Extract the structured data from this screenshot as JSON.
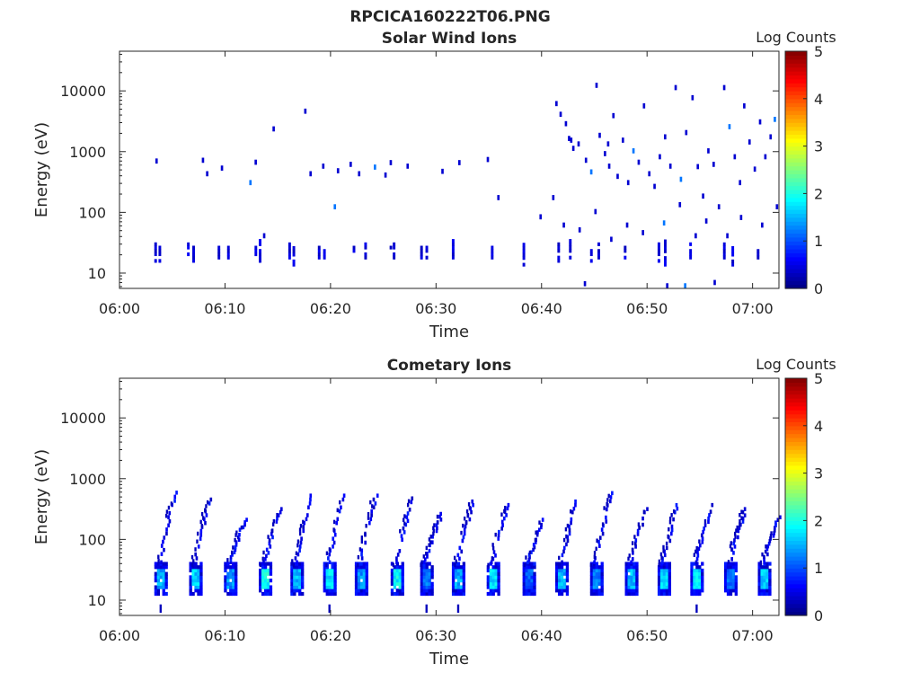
{
  "figure_title": "RPCICA160222T06.PNG",
  "colormap": [
    "#00007f",
    "#0000ff",
    "#007fff",
    "#00ffff",
    "#7fff7f",
    "#ffff00",
    "#ff7f00",
    "#ff0000",
    "#7f0000"
  ],
  "chart_data": [
    {
      "type": "heatmap",
      "title": "Solar Wind Ions",
      "xlabel": "Time",
      "ylabel": "Energy (eV)",
      "x_tick_labels": [
        "06:00",
        "06:10",
        "06:20",
        "06:30",
        "06:40",
        "06:50",
        "07:00"
      ],
      "x_tick_minutes": [
        0,
        10,
        20,
        30,
        40,
        50,
        60
      ],
      "xlim_minutes": [
        0,
        62.5
      ],
      "y_scale": "log",
      "ylim": [
        5.6,
        45000
      ],
      "y_tick_labels": [
        "10",
        "100",
        "1000",
        "10000"
      ],
      "y_tick_values": [
        10,
        100,
        1000,
        10000
      ],
      "colorbar": {
        "label": "Log Counts",
        "range": [
          0,
          5
        ],
        "tick_labels": [
          "0",
          "1",
          "2",
          "3",
          "4",
          "5"
        ]
      },
      "low_band_columns": [
        {
          "t": 3.3,
          "e": [
            15,
            30
          ],
          "v": 0.3
        },
        {
          "t": 3.7,
          "e": [
            15,
            30
          ],
          "v": 0.3
        },
        {
          "t": 6.4,
          "e": [
            17,
            30
          ],
          "v": 0.3
        },
        {
          "t": 6.9,
          "e": [
            15,
            26
          ],
          "v": 0.3
        },
        {
          "t": 9.3,
          "e": [
            17,
            26
          ],
          "v": 0.3
        },
        {
          "t": 10.2,
          "e": [
            17,
            30
          ],
          "v": 0.3
        },
        {
          "t": 12.8,
          "e": [
            17,
            26
          ],
          "v": 0.3
        },
        {
          "t": 13.2,
          "e": [
            15,
            34
          ],
          "v": 0.3
        },
        {
          "t": 16.0,
          "e": [
            17,
            30
          ],
          "v": 0.3
        },
        {
          "t": 16.4,
          "e": [
            13,
            26
          ],
          "v": 0.3
        },
        {
          "t": 18.8,
          "e": [
            17,
            30
          ],
          "v": 0.3
        },
        {
          "t": 19.3,
          "e": [
            17,
            30
          ],
          "v": 0.3
        },
        {
          "t": 22.1,
          "e": [
            17,
            26
          ],
          "v": 0.3
        },
        {
          "t": 23.2,
          "e": [
            17,
            30
          ],
          "v": 0.3
        },
        {
          "t": 25.6,
          "e": [
            17,
            26
          ],
          "v": 0.3
        },
        {
          "t": 25.9,
          "e": [
            17,
            30
          ],
          "v": 0.3
        },
        {
          "t": 28.5,
          "e": [
            17,
            30
          ],
          "v": 0.3
        },
        {
          "t": 29.0,
          "e": [
            17,
            26
          ],
          "v": 0.3
        },
        {
          "t": 31.5,
          "e": [
            17,
            34
          ],
          "v": 0.3
        },
        {
          "t": 35.2,
          "e": [
            17,
            26
          ],
          "v": 0.3
        },
        {
          "t": 38.2,
          "e": [
            13,
            34
          ],
          "v": 0.3
        },
        {
          "t": 41.5,
          "e": [
            15,
            30
          ],
          "v": 0.3
        },
        {
          "t": 42.6,
          "e": [
            17,
            34
          ],
          "v": 0.3
        },
        {
          "t": 44.6,
          "e": [
            15,
            30
          ],
          "v": 0.3
        },
        {
          "t": 45.3,
          "e": [
            17,
            30
          ],
          "v": 0.3
        },
        {
          "t": 47.8,
          "e": [
            17,
            30
          ],
          "v": 0.3
        },
        {
          "t": 51.0,
          "e": [
            15,
            30
          ],
          "v": 0.3
        },
        {
          "t": 51.6,
          "e": [
            13,
            34
          ],
          "v": 0.3
        },
        {
          "t": 54.0,
          "e": [
            15,
            30
          ],
          "v": 0.3
        },
        {
          "t": 57.2,
          "e": [
            17,
            30
          ],
          "v": 0.3
        },
        {
          "t": 58.0,
          "e": [
            13,
            26
          ],
          "v": 0.3
        },
        {
          "t": 60.4,
          "e": [
            17,
            26
          ],
          "v": 0.3
        }
      ],
      "points": [
        {
          "t": 3.4,
          "e": 680
        },
        {
          "t": 7.8,
          "e": 700
        },
        {
          "t": 8.2,
          "e": 420
        },
        {
          "t": 9.6,
          "e": 520
        },
        {
          "t": 12.3,
          "e": 300
        },
        {
          "t": 12.8,
          "e": 650
        },
        {
          "t": 14.5,
          "e": 2300
        },
        {
          "t": 17.5,
          "e": 4500
        },
        {
          "t": 18.0,
          "e": 420
        },
        {
          "t": 19.2,
          "e": 560
        },
        {
          "t": 20.6,
          "e": 470
        },
        {
          "t": 21.8,
          "e": 600
        },
        {
          "t": 22.6,
          "e": 420
        },
        {
          "t": 24.1,
          "e": 540
        },
        {
          "t": 25.1,
          "e": 400
        },
        {
          "t": 25.6,
          "e": 640
        },
        {
          "t": 27.2,
          "e": 560
        },
        {
          "t": 30.5,
          "e": 460
        },
        {
          "t": 32.1,
          "e": 640
        },
        {
          "t": 34.8,
          "e": 720
        },
        {
          "t": 35.8,
          "e": 170
        },
        {
          "t": 39.8,
          "e": 82
        },
        {
          "t": 20.3,
          "e": 120
        },
        {
          "t": 13.6,
          "e": 40
        },
        {
          "t": 41.3,
          "e": 6000
        },
        {
          "t": 41.7,
          "e": 4000
        },
        {
          "t": 42.2,
          "e": 2800
        },
        {
          "t": 42.5,
          "e": 1600
        },
        {
          "t": 42.9,
          "e": 1100
        },
        {
          "t": 43.4,
          "e": 1300
        },
        {
          "t": 44.1,
          "e": 700
        },
        {
          "t": 44.6,
          "e": 450
        },
        {
          "t": 45.1,
          "e": 12000
        },
        {
          "t": 45.4,
          "e": 1800
        },
        {
          "t": 45.9,
          "e": 900
        },
        {
          "t": 46.3,
          "e": 560
        },
        {
          "t": 46.7,
          "e": 3800
        },
        {
          "t": 47.1,
          "e": 380
        },
        {
          "t": 47.6,
          "e": 1500
        },
        {
          "t": 48.1,
          "e": 300
        },
        {
          "t": 48.6,
          "e": 1000
        },
        {
          "t": 49.1,
          "e": 650
        },
        {
          "t": 49.6,
          "e": 5500
        },
        {
          "t": 50.1,
          "e": 420
        },
        {
          "t": 50.6,
          "e": 260
        },
        {
          "t": 51.1,
          "e": 800
        },
        {
          "t": 51.6,
          "e": 1700
        },
        {
          "t": 52.1,
          "e": 560
        },
        {
          "t": 52.6,
          "e": 11000
        },
        {
          "t": 53.1,
          "e": 340
        },
        {
          "t": 53.6,
          "e": 2000
        },
        {
          "t": 54.2,
          "e": 7500
        },
        {
          "t": 54.7,
          "e": 550
        },
        {
          "t": 55.2,
          "e": 180
        },
        {
          "t": 55.7,
          "e": 1000
        },
        {
          "t": 56.2,
          "e": 600
        },
        {
          "t": 56.7,
          "e": 120
        },
        {
          "t": 57.2,
          "e": 11000
        },
        {
          "t": 57.7,
          "e": 2500
        },
        {
          "t": 58.2,
          "e": 800
        },
        {
          "t": 58.7,
          "e": 300
        },
        {
          "t": 59.1,
          "e": 5500
        },
        {
          "t": 59.6,
          "e": 1400
        },
        {
          "t": 60.1,
          "e": 500
        },
        {
          "t": 60.6,
          "e": 3000
        },
        {
          "t": 61.1,
          "e": 800
        },
        {
          "t": 61.6,
          "e": 1700
        },
        {
          "t": 62.0,
          "e": 3300
        },
        {
          "t": 62.2,
          "e": 120
        },
        {
          "t": 41.0,
          "e": 170
        },
        {
          "t": 42.0,
          "e": 60
        },
        {
          "t": 43.5,
          "e": 50
        },
        {
          "t": 45.0,
          "e": 100
        },
        {
          "t": 46.5,
          "e": 35
        },
        {
          "t": 48.0,
          "e": 60
        },
        {
          "t": 49.5,
          "e": 45
        },
        {
          "t": 51.5,
          "e": 65
        },
        {
          "t": 53.0,
          "e": 130
        },
        {
          "t": 54.5,
          "e": 40
        },
        {
          "t": 55.5,
          "e": 70
        },
        {
          "t": 57.5,
          "e": 40
        },
        {
          "t": 58.8,
          "e": 80
        },
        {
          "t": 60.8,
          "e": 60
        },
        {
          "t": 44.0,
          "e": 6.5
        },
        {
          "t": 51.8,
          "e": 6.0
        },
        {
          "t": 53.5,
          "e": 6.0
        },
        {
          "t": 56.3,
          "e": 6.8
        },
        {
          "t": 42.7,
          "e": 1500
        },
        {
          "t": 46.2,
          "e": 1300
        }
      ]
    },
    {
      "type": "heatmap",
      "title": "Cometary Ions",
      "xlabel": "Time",
      "ylabel": "Energy (eV)",
      "x_tick_labels": [
        "06:00",
        "06:10",
        "06:20",
        "06:30",
        "06:40",
        "06:50",
        "07:00"
      ],
      "x_tick_minutes": [
        0,
        10,
        20,
        30,
        40,
        50,
        60
      ],
      "xlim_minutes": [
        0,
        62.5
      ],
      "y_scale": "log",
      "ylim": [
        5.6,
        45000
      ],
      "y_tick_labels": [
        "10",
        "100",
        "1000",
        "10000"
      ],
      "y_tick_values": [
        10,
        100,
        1000,
        10000
      ],
      "colorbar": {
        "label": "Log Counts",
        "range": [
          0,
          5
        ],
        "tick_labels": [
          "0",
          "1",
          "2",
          "3",
          "4",
          "5"
        ]
      },
      "bursts": [
        {
          "t": 3.3,
          "core": 1.2,
          "top": 560
        },
        {
          "t": 6.6,
          "core": 1.4,
          "top": 500
        },
        {
          "t": 9.9,
          "core": 1.1,
          "top": 200
        },
        {
          "t": 13.2,
          "core": 1.7,
          "top": 300
        },
        {
          "t": 16.2,
          "core": 1.3,
          "top": 500
        },
        {
          "t": 19.3,
          "core": 1.5,
          "top": 500
        },
        {
          "t": 22.3,
          "core": 1.1,
          "top": 500
        },
        {
          "t": 25.7,
          "core": 1.6,
          "top": 450
        },
        {
          "t": 28.5,
          "core": 0.9,
          "top": 250
        },
        {
          "t": 31.5,
          "core": 1.2,
          "top": 400
        },
        {
          "t": 34.8,
          "core": 1.5,
          "top": 350
        },
        {
          "t": 38.2,
          "core": 0.8,
          "top": 200
        },
        {
          "t": 41.3,
          "core": 1.2,
          "top": 400
        },
        {
          "t": 44.6,
          "core": 1.0,
          "top": 550
        },
        {
          "t": 47.9,
          "core": 1.3,
          "top": 300
        },
        {
          "t": 51.0,
          "core": 1.4,
          "top": 400
        },
        {
          "t": 54.1,
          "core": 1.5,
          "top": 350
        },
        {
          "t": 57.3,
          "core": 0.9,
          "top": 300
        },
        {
          "t": 60.5,
          "core": 1.4,
          "top": 220
        }
      ]
    }
  ]
}
